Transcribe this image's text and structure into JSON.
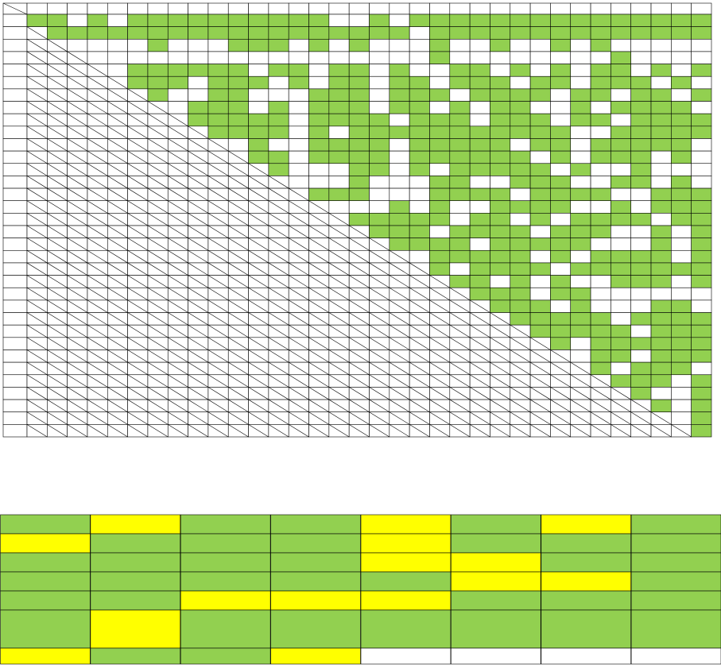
{
  "palette": {
    "g": "#92d050",
    "w": "#ffffff",
    "y": "#ffff00"
  },
  "upper_grid": {
    "rows": [
      "ggwgwggggggggggwwgwgggggggggggggggg",
      "ggggggggggggggggggwggggggggggggggg",
      "wwwwgwwwgggwgwgwwwgwwgwwgwgwwwww",
      "wwwwwwwwwwwwwwwwwgwwwwwwwwgwwww",
      "wggggggwggwggwgwwggwgwgwggwgwg",
      "gggwgggwgwggwggwgggwggwgggwgw",
      "gwwggwwwgggwgggwggggwggwggwg",
      "wgggwgwgggwggwgwggwwgwggggw",
      "gggggwggggwgggwgggwggwgggg",
      "ggggwgwgggggggggggwwggggg",
      "wgwwggggwgggggwggwgggggw",
      "ggwggggwggggggwgwgggwgw",
      "gwwwggwgwgggggwgwwgwww",
      "wwwgwwwggwwgggwwggwgw",
      "gggwwwggggwggggwwggg",
      "wwwgwgwwggggwwgwggg",
      "gggggwggwgwggggwgg",
      "gggwggggwgggwwgwg",
      "ggggwgggggwwwgwg",
      "wgggggwgwggggwg",
      "gwggggwggggggg",
      "ggwgwgwwgggwg",
      "gggwggwwwwww",
      "gggwgwwwggw",
      "gggggwgggg",
      "gggggwggg",
      "gwgggggg",
      "wggwggg",
      "gwgggw",
      "gggwg",
      "gwwg",
      "gwg",
      "wg",
      "g"
    ]
  },
  "lower_table": {
    "rows": [
      "gyggygyg",
      "ygggyggg",
      "ggggyygg",
      "gggggyyg",
      "ggyyyggg",
      "gygggggg",
      "yggywwww"
    ]
  }
}
